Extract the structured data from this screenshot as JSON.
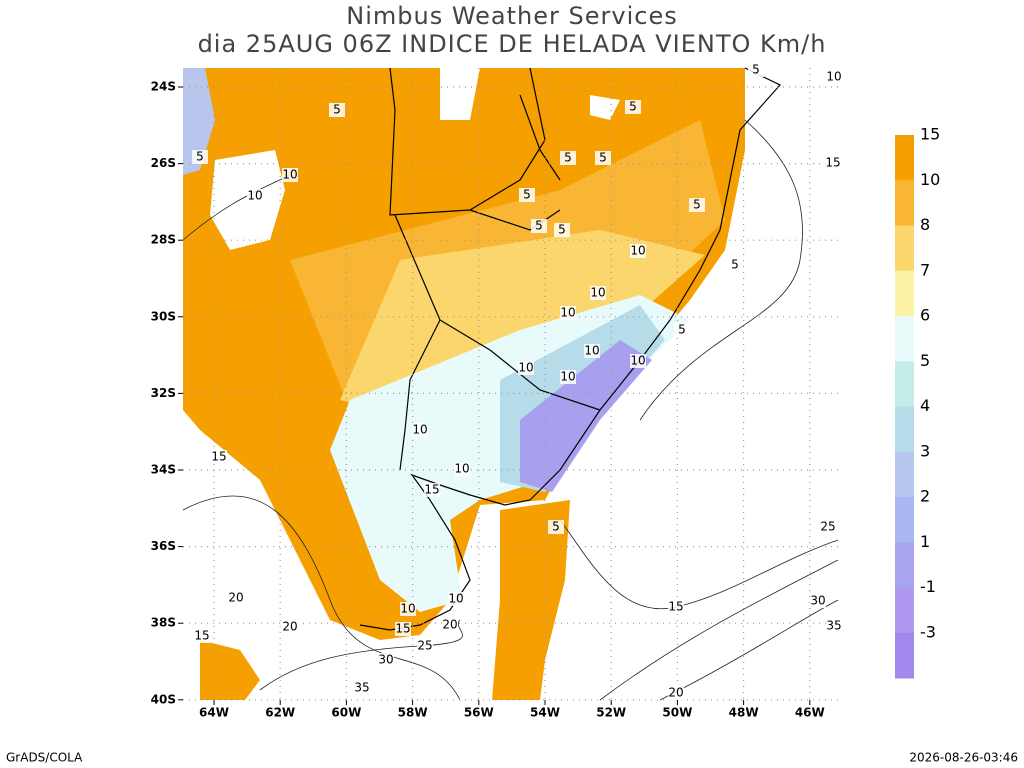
{
  "header": {
    "title": "Nimbus Weather Services",
    "subtitle": "dia 25AUG 06Z INDICE DE HELADA VIENTO Km/h"
  },
  "map": {
    "lon_labels": [
      "64W",
      "62W",
      "60W",
      "58W",
      "56W",
      "54W",
      "52W",
      "50W",
      "48W",
      "46W"
    ],
    "lat_labels": [
      "24S",
      "26S",
      "28S",
      "30S",
      "32S",
      "34S",
      "36S",
      "38S",
      "40S"
    ],
    "contour_labels": [
      5,
      5,
      5,
      5,
      5,
      5,
      5,
      5,
      5,
      5,
      5,
      5,
      5,
      10,
      10,
      10,
      10,
      10,
      10,
      10,
      10,
      10,
      10,
      10,
      10,
      10,
      10,
      15,
      15,
      15,
      15,
      15,
      15,
      20,
      20,
      20,
      20,
      25,
      25,
      30,
      30,
      35,
      35
    ]
  },
  "colorbar": {
    "levels": [
      {
        "value": 15,
        "color": "#f5a000"
      },
      {
        "value": 10,
        "color": "#f8b634"
      },
      {
        "value": 8,
        "color": "#fbd66c"
      },
      {
        "value": 7,
        "color": "#fdf3a4"
      },
      {
        "value": 6,
        "color": "#e8fafa"
      },
      {
        "value": 5,
        "color": "#c4ece8"
      },
      {
        "value": 4,
        "color": "#b6dcea"
      },
      {
        "value": 3,
        "color": "#b6c8ee"
      },
      {
        "value": 2,
        "color": "#aab6f0"
      },
      {
        "value": 1,
        "color": "#a8a4f0"
      },
      {
        "value": -1,
        "color": "#ae98f0"
      },
      {
        "value": -3,
        "color": "#a088ee"
      }
    ]
  },
  "footer": {
    "left": "GrADS/COLA",
    "right": "2026-08-26-03:46"
  }
}
